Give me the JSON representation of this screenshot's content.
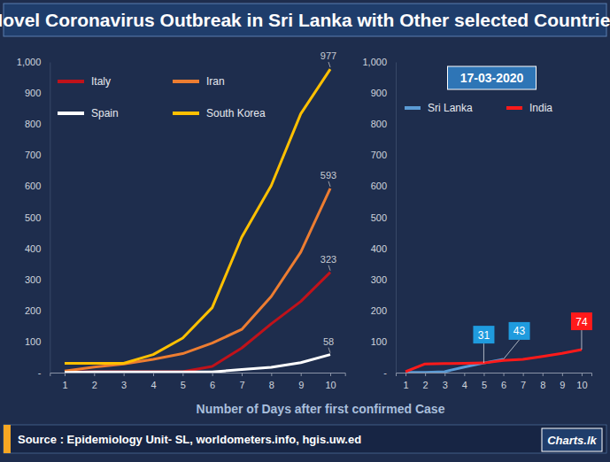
{
  "title": "Novel Coronavirus Outbreak in Sri Lanka with Other selected Countries",
  "xlabel": "Number of Days after first confirmed Case",
  "source": "Source : Epidemiology Unit- SL, worldometers.info, hgis.uw.ed",
  "logo": "Charts.lk",
  "chart_data": [
    {
      "type": "line",
      "x": [
        1,
        2,
        3,
        4,
        5,
        6,
        7,
        8,
        9,
        10
      ],
      "xlim": [
        0.5,
        10.5
      ],
      "xticks": [
        1,
        2,
        3,
        4,
        5,
        6,
        7,
        8,
        9,
        10
      ],
      "ylim": [
        0,
        1000
      ],
      "yticks": [
        {
          "value": 0,
          "label": "-"
        },
        100,
        200,
        300,
        400,
        500,
        600,
        700,
        800,
        900,
        {
          "value": 1000,
          "label": "1,000"
        }
      ],
      "grid": false,
      "legend": "top",
      "data_labels": true,
      "series": [
        {
          "name": "Italy",
          "color": "#c0121a",
          "values": [
            3,
            3,
            3,
            3,
            3,
            20,
            79,
            157,
            229,
            323
          ],
          "value_labels": [
            null,
            null,
            null,
            null,
            null,
            null,
            null,
            null,
            null,
            "323"
          ]
        },
        {
          "name": "Iran",
          "color": "#ed7d31",
          "values": [
            5,
            18,
            28,
            43,
            61,
            95,
            139,
            245,
            388,
            593
          ],
          "value_labels": [
            null,
            null,
            null,
            null,
            null,
            null,
            null,
            null,
            null,
            "593"
          ]
        },
        {
          "name": "Spain",
          "color": "#ffffff",
          "values": [
            1,
            2,
            2,
            2,
            2,
            2,
            10,
            17,
            32,
            58
          ],
          "value_labels": [
            null,
            null,
            null,
            null,
            null,
            null,
            null,
            null,
            null,
            "58"
          ]
        },
        {
          "name": "South Korea",
          "color": "#ffc000",
          "values": [
            30,
            30,
            30,
            58,
            111,
            209,
            436,
            602,
            833,
            977
          ],
          "value_labels": [
            null,
            null,
            null,
            null,
            null,
            null,
            null,
            null,
            null,
            "977"
          ]
        }
      ]
    },
    {
      "type": "line",
      "annotation": "17-03-2020",
      "x": [
        1,
        2,
        3,
        4,
        5,
        6,
        7,
        8,
        9,
        10
      ],
      "xlim": [
        0.5,
        10.5
      ],
      "xticks": [
        1,
        2,
        3,
        4,
        5,
        6,
        7,
        8,
        9,
        10
      ],
      "ylim": [
        0,
        1000
      ],
      "yticks": [
        {
          "value": 0,
          "label": "-"
        },
        100,
        200,
        300,
        400,
        500,
        600,
        700,
        800,
        900,
        {
          "value": 1000,
          "label": "1,000"
        }
      ],
      "grid": false,
      "legend": "top",
      "data_labels": true,
      "series": [
        {
          "name": "Sri Lanka",
          "color": "#5b9bd5",
          "values": [
            1,
            1,
            3,
            18,
            31,
            43,
            null,
            null,
            null,
            null
          ],
          "value_labels": [
            null,
            null,
            null,
            null,
            "31",
            "43",
            null,
            null,
            null,
            null
          ]
        },
        {
          "name": "India",
          "color": "#ff1a1a",
          "values": [
            3,
            28,
            29,
            30,
            31,
            39,
            43,
            52,
            62,
            74
          ],
          "value_labels": [
            null,
            null,
            null,
            null,
            null,
            null,
            null,
            null,
            null,
            "74"
          ]
        }
      ]
    }
  ]
}
